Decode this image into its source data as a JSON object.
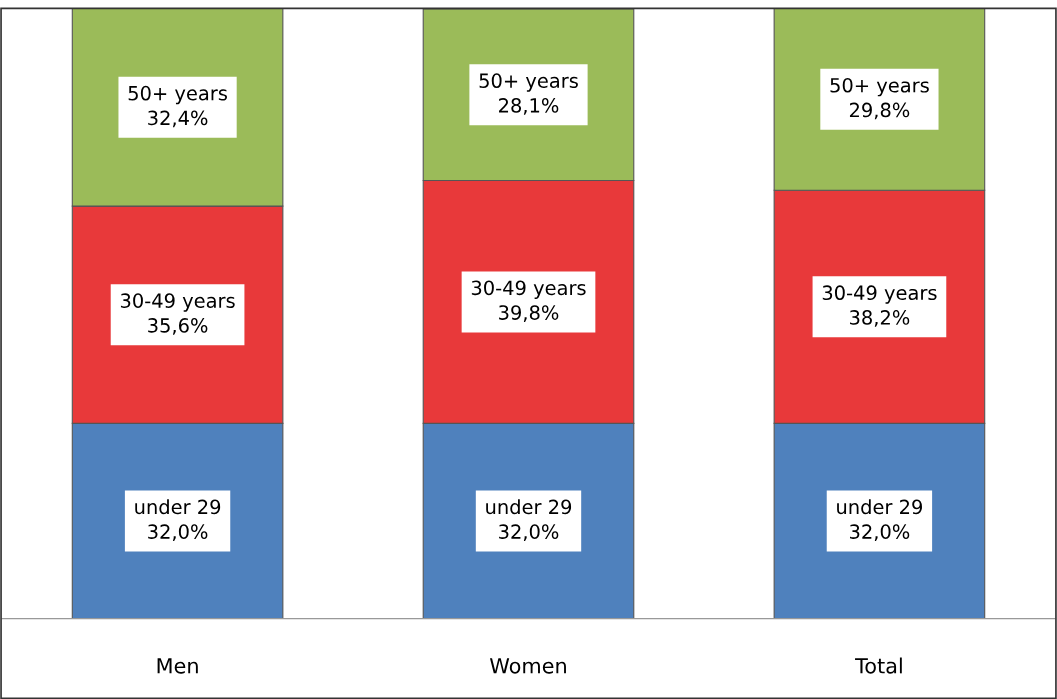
{
  "chart_data": {
    "type": "bar",
    "stacked": true,
    "categories": [
      "Men",
      "Women",
      "Total"
    ],
    "series": [
      {
        "name": "under 29",
        "color": "#4f81bd",
        "values": [
          32.0,
          32.0,
          32.0
        ],
        "value_labels": [
          "32,0%",
          "32,0%",
          "32,0%"
        ]
      },
      {
        "name": "30-49 years",
        "color": "#e8393a",
        "values": [
          35.6,
          39.8,
          38.2
        ],
        "value_labels": [
          "35,6%",
          "39,8%",
          "38,2%"
        ]
      },
      {
        "name": "50+ years",
        "color": "#9bbb59",
        "values": [
          32.4,
          28.1,
          29.8
        ],
        "value_labels": [
          "32,4%",
          "28,1%",
          "29,8%"
        ]
      }
    ],
    "grid": false,
    "legend": false
  }
}
